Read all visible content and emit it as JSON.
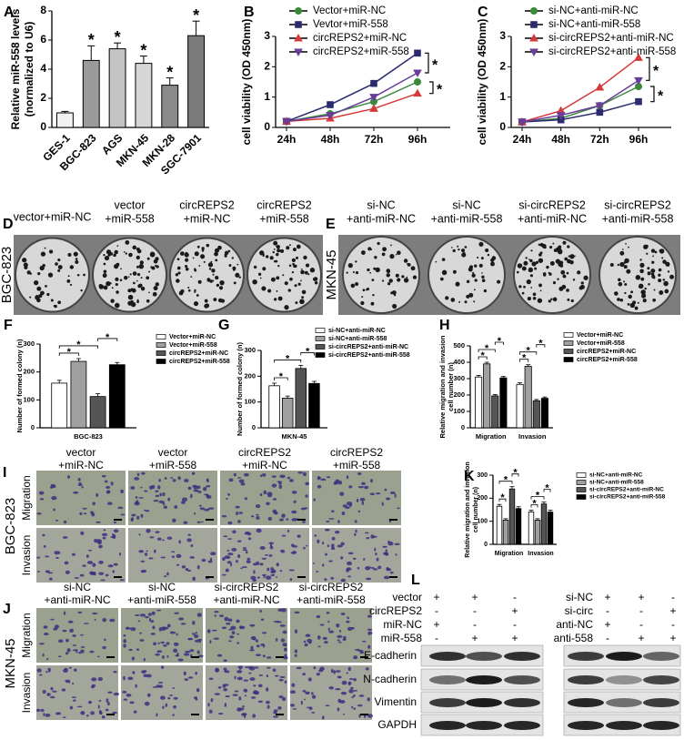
{
  "chart_data": [
    {
      "type": "bar",
      "label": "A",
      "ylabel": [
        "Relative miR-558 levels",
        "(normalized to U6)"
      ],
      "categories": [
        "GES-1",
        "BGC-823",
        "AGS",
        "MKN-45",
        "MKN-28",
        "SGC-7901"
      ],
      "values": [
        1.0,
        4.6,
        5.4,
        4.4,
        2.9,
        6.3
      ],
      "errors": [
        0.1,
        1.0,
        0.4,
        0.5,
        0.5,
        1.0
      ],
      "colors": [
        "#f2f2f2",
        "#9a9a9a",
        "#c4c4c4",
        "#d6d6d6",
        "#8a8a8a",
        "#7a7a7a"
      ],
      "annotations": [
        null,
        "*",
        "*",
        "*",
        "*",
        "*"
      ],
      "ylim": [
        0,
        8
      ],
      "yticks": [
        0,
        2,
        4,
        6,
        8
      ]
    },
    {
      "type": "line",
      "label": "B",
      "ylabel": "cell viability (OD 450nm)",
      "categories": [
        "24h",
        "48h",
        "72h",
        "96h"
      ],
      "series": [
        {
          "name": "Vector+miR-NC",
          "color": "#3a8a3a",
          "marker": "circle",
          "values": [
            0.2,
            0.45,
            0.85,
            1.5
          ]
        },
        {
          "name": "Vevtor+miR-558",
          "color": "#2b2b6e",
          "marker": "square",
          "values": [
            0.2,
            0.75,
            1.45,
            2.45
          ]
        },
        {
          "name": "circREPS2+miR-NC",
          "color": "#d43a3a",
          "marker": "triangle",
          "values": [
            0.2,
            0.3,
            0.62,
            1.12
          ]
        },
        {
          "name": "circREPS2+miR-558",
          "color": "#6a3d9a",
          "marker": "triangle-down",
          "values": [
            0.2,
            0.4,
            1.0,
            1.8
          ]
        }
      ],
      "significance": [
        {
          "from": 1,
          "to": 3,
          "label": "*"
        },
        {
          "from": 0,
          "to": 2,
          "label": "*"
        }
      ],
      "ylim": [
        0,
        3
      ],
      "yticks": [
        0,
        1,
        2,
        3
      ]
    },
    {
      "type": "line",
      "label": "C",
      "ylabel": "cell viability (OD 450nm)",
      "categories": [
        "24h",
        "48h",
        "72h",
        "96h"
      ],
      "series": [
        {
          "name": "si-NC+anti-miR-NC",
          "color": "#3a8a3a",
          "marker": "circle",
          "values": [
            0.18,
            0.3,
            0.72,
            1.35
          ]
        },
        {
          "name": "si-NC+anti-miR-558",
          "color": "#2b2b6e",
          "marker": "square",
          "values": [
            0.18,
            0.25,
            0.5,
            0.85
          ]
        },
        {
          "name": "si-circREPS2+anti-miR-NC",
          "color": "#d43a3a",
          "marker": "triangle",
          "values": [
            0.18,
            0.55,
            1.32,
            2.3
          ]
        },
        {
          "name": "si-circREPS2+anti-miR-558",
          "color": "#6a3d9a",
          "marker": "triangle-down",
          "values": [
            0.18,
            0.4,
            0.72,
            1.55
          ]
        }
      ],
      "significance": [
        {
          "from": 2,
          "to": 3,
          "label": "*"
        },
        {
          "from": 0,
          "to": 1,
          "label": "*"
        }
      ],
      "ylim": [
        0,
        3
      ],
      "yticks": [
        0,
        1,
        2,
        3
      ]
    },
    {
      "type": "bar",
      "label": "F",
      "ylabel": "Number of formed colony (n)",
      "categories": [
        "BGC-823"
      ],
      "series": [
        {
          "name": "Vector+miR-NC",
          "color": "#ffffff",
          "values": [
            160
          ],
          "errors": [
            10
          ]
        },
        {
          "name": "Vector+miR-558",
          "color": "#a0a0a0",
          "values": [
            238
          ],
          "errors": [
            10
          ]
        },
        {
          "name": "circREPS2+miR-NC",
          "color": "#555555",
          "values": [
            112
          ],
          "errors": [
            10
          ]
        },
        {
          "name": "circREPS2+miR-558",
          "color": "#000000",
          "values": [
            226
          ],
          "errors": [
            8
          ]
        }
      ],
      "significance": [
        {
          "category": 0,
          "from": 0,
          "to": 1,
          "label": "*"
        },
        {
          "category": 0,
          "from": 0,
          "to": 2,
          "label": "*"
        },
        {
          "category": 0,
          "from": 2,
          "to": 3,
          "label": "*"
        }
      ],
      "ylim": [
        0,
        300
      ],
      "yticks": [
        0,
        100,
        200,
        300
      ]
    },
    {
      "type": "bar",
      "label": "G",
      "ylabel": "Number of formed colony (n)",
      "categories": [
        "MKN-45"
      ],
      "series": [
        {
          "name": "si-NC+anti-miR-NC",
          "color": "#ffffff",
          "values": [
            163
          ],
          "errors": [
            10
          ]
        },
        {
          "name": "si-NC+anti-miR-558",
          "color": "#a0a0a0",
          "values": [
            115
          ],
          "errors": [
            8
          ]
        },
        {
          "name": "si-circREPS2+anti-miR-NC",
          "color": "#555555",
          "values": [
            230
          ],
          "errors": [
            12
          ]
        },
        {
          "name": "si-circREPS2+anti-miR-558",
          "color": "#000000",
          "values": [
            172
          ],
          "errors": [
            8
          ]
        }
      ],
      "significance": [
        {
          "category": 0,
          "from": 0,
          "to": 1,
          "label": "*"
        },
        {
          "category": 0,
          "from": 0,
          "to": 2,
          "label": "*"
        },
        {
          "category": 0,
          "from": 2,
          "to": 3,
          "label": "*"
        }
      ],
      "ylim": [
        0,
        300
      ],
      "yticks": [
        0,
        100,
        200,
        300
      ]
    },
    {
      "type": "bar",
      "label": "H",
      "ylabel": [
        "Relative migration and invasion",
        "cell number (n)"
      ],
      "categories": [
        "Migration",
        "Invasion"
      ],
      "series": [
        {
          "name": "Vector+miR-NC",
          "color": "#ffffff",
          "values": [
            310,
            265
          ],
          "errors": [
            10,
            10
          ]
        },
        {
          "name": "Vector+miR-558",
          "color": "#a0a0a0",
          "values": [
            390,
            375
          ],
          "errors": [
            10,
            10
          ]
        },
        {
          "name": "circREPS2+miR-NC",
          "color": "#555555",
          "values": [
            195,
            165
          ],
          "errors": [
            8,
            8
          ]
        },
        {
          "name": "circREPS2+miR-558",
          "color": "#000000",
          "values": [
            305,
            180
          ],
          "errors": [
            8,
            8
          ]
        }
      ],
      "significance": [
        {
          "category": 0,
          "from": 0,
          "to": 1,
          "label": "*"
        },
        {
          "category": 0,
          "from": 0,
          "to": 2,
          "label": "*"
        },
        {
          "category": 0,
          "from": 2,
          "to": 3,
          "label": "*"
        },
        {
          "category": 1,
          "from": 0,
          "to": 1,
          "label": "*"
        },
        {
          "category": 1,
          "from": 0,
          "to": 2,
          "label": "*"
        },
        {
          "category": 1,
          "from": 2,
          "to": 3,
          "label": "*"
        }
      ],
      "ylim": [
        0,
        500
      ],
      "yticks": [
        0,
        100,
        200,
        300,
        400,
        500
      ]
    },
    {
      "type": "bar",
      "label": "K",
      "ylabel": [
        "Relative migration and invasion",
        "cell number (n)"
      ],
      "categories": [
        "Migration",
        "Invasion"
      ],
      "series": [
        {
          "name": "si-NC+anti-miR-NC",
          "color": "#ffffff",
          "values": [
            165,
            140
          ],
          "errors": [
            8,
            8
          ]
        },
        {
          "name": "si-NC+anti-miR-558",
          "color": "#a0a0a0",
          "values": [
            105,
            105
          ],
          "errors": [
            6,
            6
          ]
        },
        {
          "name": "si-circREPS2+anti-miR-NC",
          "color": "#555555",
          "values": [
            240,
            175
          ],
          "errors": [
            10,
            8
          ]
        },
        {
          "name": "si-circREPS2+anti-miR-558",
          "color": "#000000",
          "values": [
            155,
            140
          ],
          "errors": [
            8,
            8
          ]
        }
      ],
      "significance": [
        {
          "category": 0,
          "from": 0,
          "to": 1,
          "label": "*"
        },
        {
          "category": 0,
          "from": 0,
          "to": 2,
          "label": "*"
        },
        {
          "category": 0,
          "from": 2,
          "to": 3,
          "label": "*"
        },
        {
          "category": 1,
          "from": 0,
          "to": 1,
          "label": "*"
        },
        {
          "category": 1,
          "from": 0,
          "to": 2,
          "label": "*"
        },
        {
          "category": 1,
          "from": 2,
          "to": 3,
          "label": "*"
        }
      ],
      "ylim": [
        0,
        300
      ],
      "yticks": [
        0,
        100,
        200,
        300
      ]
    }
  ],
  "photo_panels": [
    {
      "label": "D",
      "kind": "colony",
      "row_title": "BGC-823",
      "columns": [
        [
          "vector+miR-NC"
        ],
        [
          "vector",
          "+miR-558"
        ],
        [
          "circREPS2",
          "+miR-NC"
        ],
        [
          "circREPS2",
          "+miR-558"
        ]
      ]
    },
    {
      "label": "E",
      "kind": "colony",
      "row_title": "MKN-45",
      "columns": [
        [
          "si-NC",
          "+anti-miR-NC"
        ],
        [
          "si-NC",
          "+anti-miR-558"
        ],
        [
          "si-circREPS2",
          "+anti-miR-NC"
        ],
        [
          "si-circREPS2",
          "+anti-miR-558"
        ]
      ]
    },
    {
      "label": "I",
      "kind": "transwell",
      "row_title": "BGC-823",
      "rows": [
        "Migration",
        "Invasion"
      ],
      "columns": [
        [
          "vector",
          "+miR-NC"
        ],
        [
          "vector",
          "+miR-558"
        ],
        [
          "circREPS2",
          "+miR-NC"
        ],
        [
          "circREPS2",
          "+miR-558"
        ]
      ]
    },
    {
      "label": "J",
      "kind": "transwell",
      "row_title": "MKN-45",
      "rows": [
        "Migration",
        "Invasion"
      ],
      "columns": [
        [
          "si-NC",
          "+anti-miR-NC"
        ],
        [
          "si-NC",
          "+anti-miR-558"
        ],
        [
          "si-circREPS2",
          "+anti-miR-NC"
        ],
        [
          "si-circREPS2",
          "+anti-miR-558"
        ]
      ]
    }
  ],
  "western_blot": {
    "label": "L",
    "left": [
      {
        "name": "vector",
        "signs": [
          "+",
          "+",
          "-"
        ]
      },
      {
        "name": "circREPS2",
        "signs": [
          "-",
          "-",
          "+"
        ]
      },
      {
        "name": "miR-NC",
        "signs": [
          "+",
          "-",
          "-"
        ]
      },
      {
        "name": "miR-558",
        "signs": [
          "-",
          "+",
          "+"
        ]
      }
    ],
    "right": [
      {
        "name": "si-NC",
        "signs": [
          "+",
          "+",
          "-"
        ]
      },
      {
        "name": "si-circ",
        "signs": [
          "-",
          "-",
          "+"
        ]
      },
      {
        "name": "anti-NC",
        "signs": [
          "+",
          "-",
          "-"
        ]
      },
      {
        "name": "anti-558",
        "signs": [
          "-",
          "+",
          "+"
        ]
      }
    ],
    "proteins": [
      "E-cadherin",
      "N-cadherin",
      "Vimentin",
      "GAPDH"
    ]
  }
}
